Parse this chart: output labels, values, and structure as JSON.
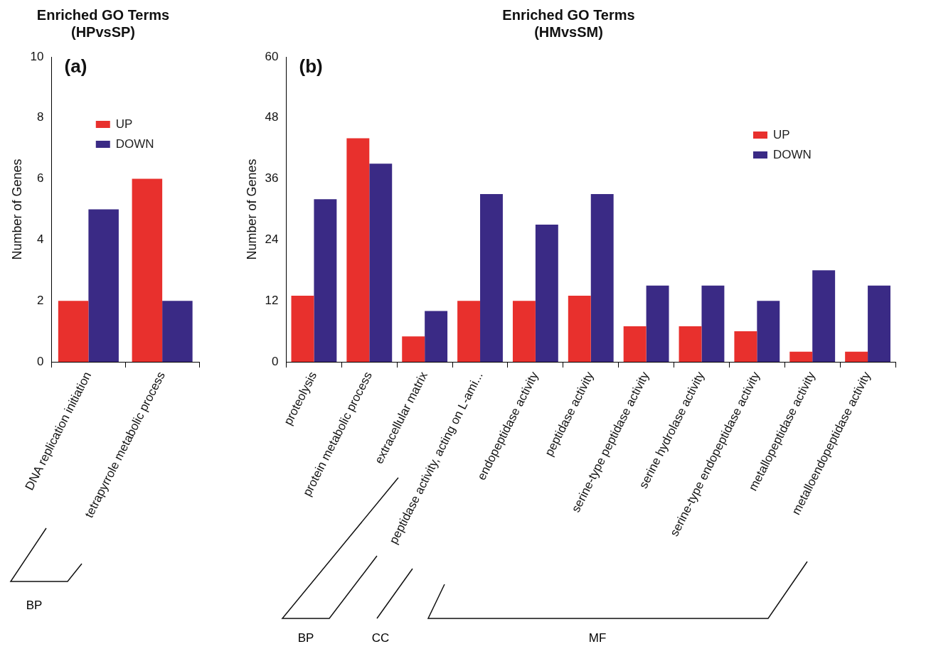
{
  "chart_data": [
    {
      "type": "bar",
      "title": "Enriched GO Terms",
      "subtitle": "(HPvsSP)",
      "ylabel": "Number of Genes",
      "categories": [
        "DNA replication initiation",
        "tetrapyrrole metabolic process"
      ],
      "series": [
        {
          "name": "UP",
          "color": "#e8302d",
          "values": [
            2,
            6
          ]
        },
        {
          "name": "DOWN",
          "color": "#3a2a85",
          "values": [
            5,
            2
          ]
        }
      ],
      "ylim": [
        0,
        10
      ],
      "yticks": [
        0,
        2,
        4,
        6,
        8,
        10
      ],
      "grid": false,
      "legend": "top",
      "annotations": [
        "(a)",
        "BP"
      ]
    },
    {
      "type": "bar",
      "title": "Enriched GO Terms",
      "subtitle": "(HMvsSM)",
      "ylabel": "Number of Genes",
      "categories": [
        "proteolysis",
        "protein metabolic process",
        "extracellular matrix",
        "peptidase activity, acting on L-ami...",
        "endopeptidase activity",
        "peptidase activity",
        "serine-type peptidase activity",
        "serine hydrolase activity",
        "serine-type endopeptidase activity",
        "metallopeptidase activity",
        "metalloendopeptidase activity"
      ],
      "series": [
        {
          "name": "UP",
          "color": "#e8302d",
          "values": [
            13,
            44,
            5,
            12,
            12,
            13,
            7,
            7,
            6,
            2,
            2
          ]
        },
        {
          "name": "DOWN",
          "color": "#3a2a85",
          "values": [
            32,
            39,
            10,
            33,
            27,
            33,
            15,
            15,
            12,
            18,
            15
          ]
        }
      ],
      "ylim": [
        0,
        60
      ],
      "yticks": [
        0,
        12,
        24,
        36,
        48,
        60
      ],
      "grid": false,
      "legend": "top right",
      "annotations": [
        "(b)",
        "BP",
        "CC",
        "MF"
      ]
    }
  ]
}
